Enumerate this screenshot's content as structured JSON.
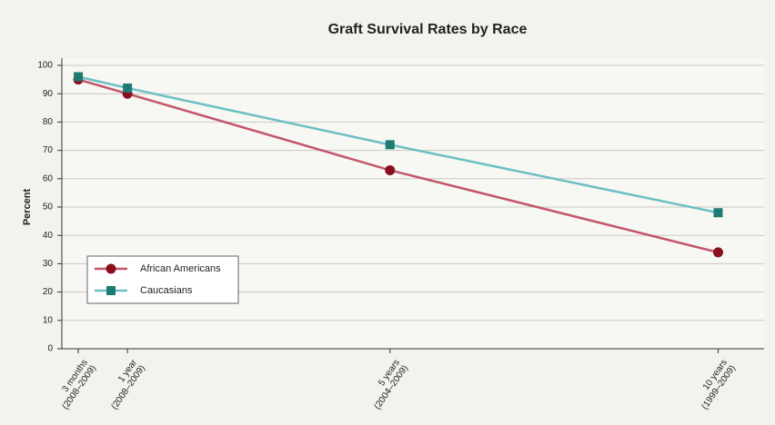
{
  "chart_data": {
    "type": "line",
    "title": "Graft Survival Rates by Race",
    "y_label": "Percent",
    "x": [
      0.25,
      1,
      5,
      10
    ],
    "xlim": [
      0,
      10.7
    ],
    "xticks": [
      {
        "value": 0.25,
        "label": "3 months\n(2008–2009)"
      },
      {
        "value": 1,
        "label": "1 year\n(2008–2009)"
      },
      {
        "value": 5,
        "label": "5 years\n(2004–2009)"
      },
      {
        "value": 10,
        "label": "10 years\n(1999–2009)"
      }
    ],
    "ylim": [
      0,
      100
    ],
    "yticks": [
      0,
      10,
      20,
      30,
      40,
      50,
      60,
      70,
      80,
      90,
      100
    ],
    "grid": true,
    "legend": "lower-left",
    "series": [
      {
        "name": "African Americans",
        "color": "#c2566a",
        "marker_color": "#8a1020",
        "marker": "circle",
        "values": [
          95,
          90,
          63,
          34
        ]
      },
      {
        "name": "Caucasians",
        "color": "#6cc0c2",
        "marker_color": "#1e7a72",
        "marker": "square",
        "values": [
          96,
          92,
          72,
          48
        ]
      }
    ]
  }
}
